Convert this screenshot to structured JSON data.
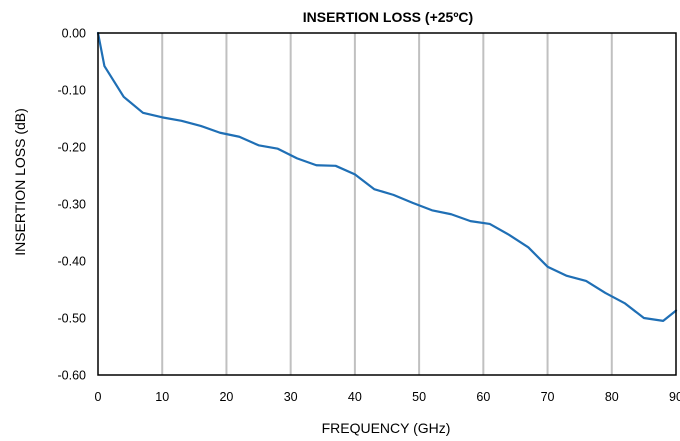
{
  "chart_data": {
    "type": "line",
    "title": "INSERTION LOSS (+25ºC)",
    "xlabel": "FREQUENCY  (GHz)",
    "ylabel": "INSERTION LOSS (dB)",
    "xlim": [
      0,
      90
    ],
    "ylim": [
      -0.6,
      0.0
    ],
    "xticks": [
      0,
      10,
      20,
      30,
      40,
      50,
      60,
      70,
      80,
      90
    ],
    "xtick_labels": [
      "0",
      "10",
      "20",
      "30",
      "40",
      "50",
      "60",
      "70",
      "80",
      "90"
    ],
    "yticks": [
      0.0,
      -0.1,
      -0.2,
      -0.3,
      -0.4,
      -0.5,
      -0.6
    ],
    "ytick_labels": [
      "0.00",
      "-0.10",
      "-0.20",
      "-0.30",
      "-0.40",
      "-0.50",
      "-0.60"
    ],
    "grid": "vertical",
    "legend": "none",
    "series": [
      {
        "color": "#1f6fb5",
        "x": [
          0,
          1,
          4,
          7,
          10,
          13,
          16,
          19,
          22,
          25,
          28,
          31,
          34,
          37,
          40,
          43,
          46,
          49,
          52,
          55,
          58,
          61,
          64,
          67,
          70,
          73,
          76,
          79,
          82,
          85,
          88,
          90
        ],
        "y": [
          0.0,
          -0.058,
          -0.112,
          -0.14,
          -0.148,
          -0.154,
          -0.163,
          -0.175,
          -0.182,
          -0.197,
          -0.203,
          -0.22,
          -0.232,
          -0.233,
          -0.248,
          -0.274,
          -0.284,
          -0.298,
          -0.311,
          -0.318,
          -0.33,
          -0.335,
          -0.354,
          -0.376,
          -0.41,
          -0.426,
          -0.435,
          -0.456,
          -0.474,
          -0.5,
          -0.505,
          -0.487
        ]
      }
    ]
  }
}
